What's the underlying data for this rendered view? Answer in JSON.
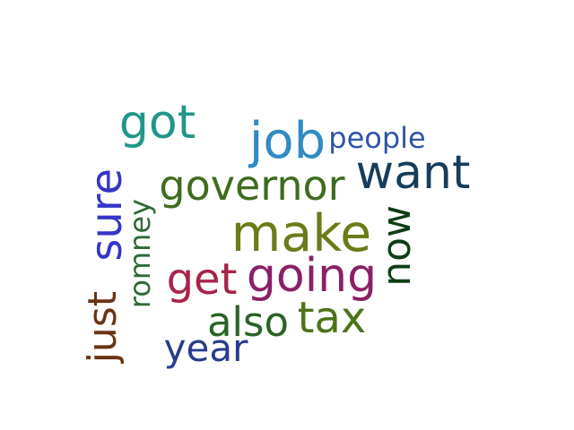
{
  "words": [
    {
      "text": "sure",
      "color": "#3535c8",
      "vertical": true
    },
    {
      "text": "got",
      "color": "#21968a",
      "vertical": false
    },
    {
      "text": "job",
      "color": "#2f8bc2",
      "vertical": false
    },
    {
      "text": "people",
      "color": "#2f55a6",
      "vertical": false
    },
    {
      "text": "want",
      "color": "#163d5a",
      "vertical": false
    },
    {
      "text": "governor",
      "color": "#3f6c1f",
      "vertical": false
    },
    {
      "text": "romney",
      "color": "#2f6a35",
      "vertical": true
    },
    {
      "text": "make",
      "color": "#6d7a18",
      "vertical": false
    },
    {
      "text": "now",
      "color": "#0f3d15",
      "vertical": true
    },
    {
      "text": "get",
      "color": "#a8234a",
      "vertical": false
    },
    {
      "text": "going",
      "color": "#8a2066",
      "vertical": false
    },
    {
      "text": "just",
      "color": "#6a3414",
      "vertical": true
    },
    {
      "text": "also",
      "color": "#2a6326",
      "vertical": false
    },
    {
      "text": "tax",
      "color": "#4d7318",
      "vertical": false
    },
    {
      "text": "year",
      "color": "#283d8e",
      "vertical": false
    }
  ]
}
